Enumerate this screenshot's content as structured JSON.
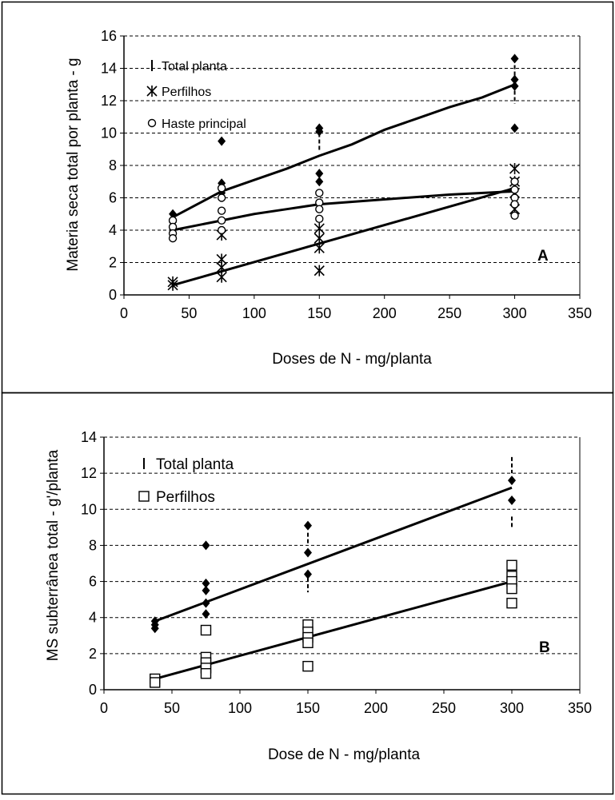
{
  "chart_data": [
    {
      "type": "scatter",
      "panel_label": "A",
      "xlabel": "Doses de N - mg/planta",
      "ylabel": "Materia seca total por planta - g",
      "xlim": [
        0,
        350
      ],
      "ylim": [
        0,
        16
      ],
      "xticks": [
        "0",
        "50",
        "100",
        "150",
        "200",
        "250",
        "300",
        "350"
      ],
      "yticks": [
        "0",
        "2",
        "4",
        "6",
        "8",
        "10",
        "12",
        "14",
        "16"
      ],
      "grid": "horizontal dashed",
      "legend_position": "top-left",
      "series": [
        {
          "name": "Total planta",
          "marker": "diamond",
          "points": [
            [
              37.5,
              4.5
            ],
            [
              37.5,
              5.0
            ],
            [
              75,
              9.5
            ],
            [
              75,
              6.9
            ],
            [
              75,
              6.6
            ],
            [
              75,
              6.3
            ],
            [
              150,
              10.3
            ],
            [
              150,
              10.1
            ],
            [
              150,
              7.5
            ],
            [
              150,
              7.0
            ],
            [
              300,
              14.6
            ],
            [
              300,
              13.3
            ],
            [
              300,
              12.9
            ],
            [
              300,
              10.3
            ]
          ],
          "fit": [
            [
              37.5,
              4.8
            ],
            [
              75,
              6.4
            ],
            [
              100,
              7.1
            ],
            [
              125,
              7.8
            ],
            [
              150,
              8.6
            ],
            [
              175,
              9.3
            ],
            [
              200,
              10.2
            ],
            [
              225,
              10.9
            ],
            [
              250,
              11.6
            ],
            [
              275,
              12.2
            ],
            [
              300,
              13.0
            ]
          ]
        },
        {
          "name": "Perfilhos",
          "marker": "asterisk",
          "points": [
            [
              37.5,
              0.8
            ],
            [
              37.5,
              0.6
            ],
            [
              75,
              2.2
            ],
            [
              75,
              1.7
            ],
            [
              75,
              1.1
            ],
            [
              75,
              3.7
            ],
            [
              150,
              4.1
            ],
            [
              150,
              3.5
            ],
            [
              150,
              2.9
            ],
            [
              150,
              1.5
            ],
            [
              300,
              7.8
            ],
            [
              300,
              7.0
            ],
            [
              300,
              6.3
            ],
            [
              300,
              5.3
            ]
          ],
          "fit": [
            [
              37.5,
              0.6
            ],
            [
              300,
              6.6
            ]
          ]
        },
        {
          "name": "Haste principal",
          "marker": "circle",
          "points": [
            [
              37.5,
              4.6
            ],
            [
              37.5,
              4.2
            ],
            [
              37.5,
              3.8
            ],
            [
              37.5,
              3.5
            ],
            [
              75,
              6.6
            ],
            [
              75,
              6.0
            ],
            [
              75,
              5.2
            ],
            [
              75,
              4.6
            ],
            [
              75,
              4.0
            ],
            [
              150,
              6.3
            ],
            [
              150,
              5.7
            ],
            [
              150,
              5.3
            ],
            [
              150,
              4.7
            ],
            [
              300,
              7.0
            ],
            [
              300,
              6.5
            ],
            [
              300,
              6.0
            ],
            [
              300,
              5.6
            ],
            [
              300,
              4.9
            ]
          ],
          "fit": [
            [
              37.5,
              4.0
            ],
            [
              75,
              4.6
            ],
            [
              100,
              5.0
            ],
            [
              125,
              5.3
            ],
            [
              150,
              5.6
            ],
            [
              200,
              5.9
            ],
            [
              250,
              6.2
            ],
            [
              300,
              6.4
            ]
          ]
        }
      ]
    },
    {
      "type": "scatter",
      "panel_label": "B",
      "xlabel": "Dose de N - mg/planta",
      "ylabel": "MS subterrânea total - g'/planta",
      "xlim": [
        0,
        350
      ],
      "ylim": [
        0,
        14
      ],
      "xticks": [
        "0",
        "50",
        "100",
        "150",
        "200",
        "250",
        "300",
        "350"
      ],
      "yticks": [
        "0",
        "2",
        "4",
        "6",
        "8",
        "10",
        "12",
        "14"
      ],
      "grid": "horizontal dashed",
      "legend_position": "top-left",
      "series": [
        {
          "name": "Total planta",
          "marker": "diamond",
          "points": [
            [
              37.5,
              3.8
            ],
            [
              37.5,
              3.6
            ],
            [
              37.5,
              3.4
            ],
            [
              75,
              8.0
            ],
            [
              75,
              5.9
            ],
            [
              75,
              5.5
            ],
            [
              75,
              4.8
            ],
            [
              75,
              4.2
            ],
            [
              150,
              9.1
            ],
            [
              150,
              7.6
            ],
            [
              150,
              6.4
            ],
            [
              300,
              11.6
            ],
            [
              300,
              10.5
            ]
          ],
          "fit": [
            [
              37.5,
              3.8
            ],
            [
              300,
              11.2
            ]
          ]
        },
        {
          "name": "Perfilhos",
          "marker": "square",
          "points": [
            [
              37.5,
              0.6
            ],
            [
              37.5,
              0.4
            ],
            [
              75,
              3.3
            ],
            [
              75,
              1.8
            ],
            [
              75,
              1.5
            ],
            [
              75,
              1.2
            ],
            [
              75,
              0.9
            ],
            [
              150,
              3.6
            ],
            [
              150,
              3.2
            ],
            [
              150,
              2.9
            ],
            [
              150,
              2.6
            ],
            [
              150,
              1.3
            ],
            [
              300,
              6.9
            ],
            [
              300,
              6.3
            ],
            [
              300,
              6.0
            ],
            [
              300,
              5.6
            ],
            [
              300,
              4.8
            ]
          ],
          "fit": [
            [
              37.5,
              0.6
            ],
            [
              300,
              6.0
            ]
          ]
        }
      ]
    }
  ]
}
